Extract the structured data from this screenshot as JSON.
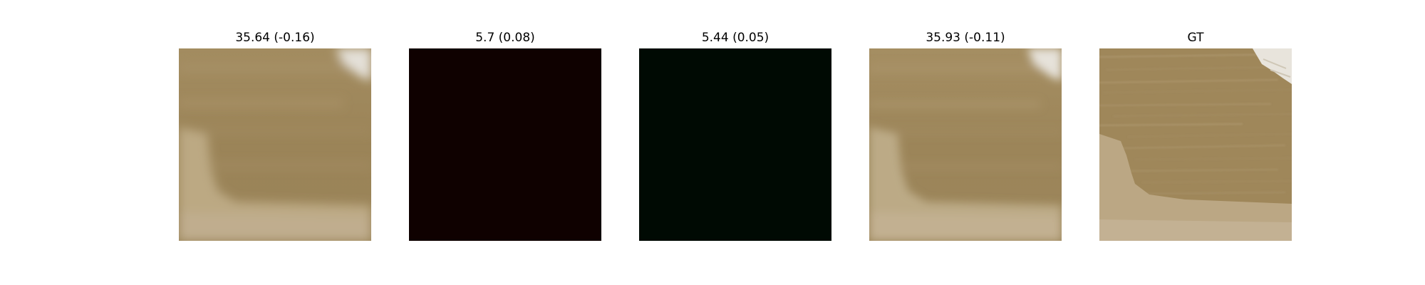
{
  "panels": [
    {
      "title": "35.64 (-0.16)",
      "kind": "blurry-sand"
    },
    {
      "title": "5.7 (0.08)",
      "kind": "dark-red"
    },
    {
      "title": "5.44 (0.05)",
      "kind": "dark-green"
    },
    {
      "title": "35.93 (-0.11)",
      "kind": "blurry-sand"
    },
    {
      "title": "GT",
      "kind": "sharp-sand"
    }
  ],
  "colors": {
    "background": "#ffffff",
    "sand_main": "#9c8559",
    "sand_light": "#b8a47f",
    "sand_pale": "#c9b89a",
    "dark_red": "#0f0100",
    "dark_green": "#000a03",
    "foam": "#e6e2da"
  }
}
